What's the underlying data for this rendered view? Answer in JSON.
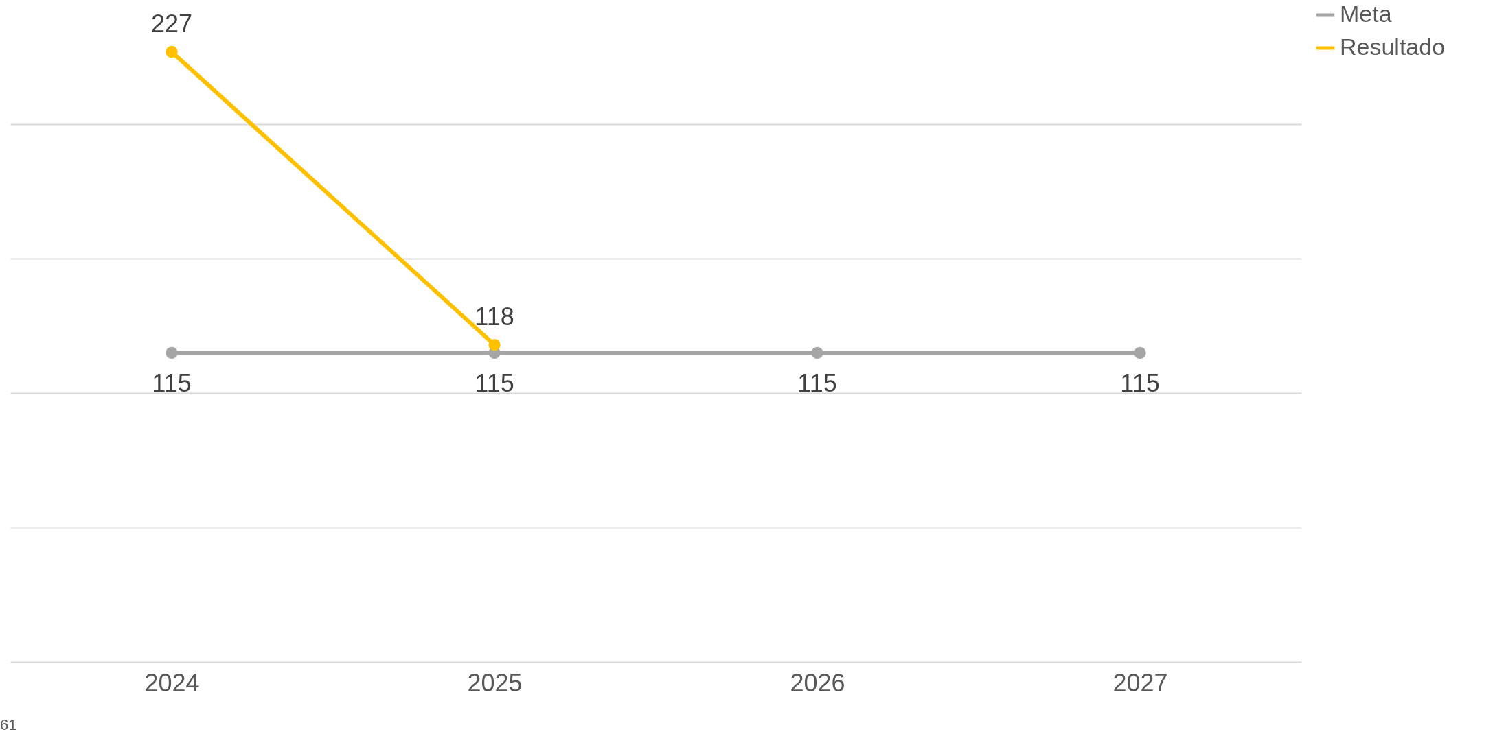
{
  "chart_data": {
    "type": "line",
    "categories": [
      "2024",
      "2025",
      "2026",
      "2027"
    ],
    "series": [
      {
        "name": "Meta",
        "color": "#a5a5a5",
        "values": [
          115,
          115,
          115,
          115
        ]
      },
      {
        "name": "Resultado",
        "color": "#ffc000",
        "values": [
          227,
          118,
          null,
          null
        ]
      }
    ],
    "ylim": [
      0,
      245
    ],
    "yticks": [
      {
        "value": 0,
        "label": null
      },
      {
        "value": 50,
        "label": null
      },
      {
        "value": 100,
        "label": null
      },
      {
        "value": 150,
        "label": null
      },
      {
        "value": 200,
        "label": null
      }
    ],
    "tick_labels": "x",
    "grid": "y",
    "legend": "right",
    "marker": "circle",
    "line_style": "solid",
    "data_labels": true,
    "annotations": [
      "61"
    ]
  }
}
